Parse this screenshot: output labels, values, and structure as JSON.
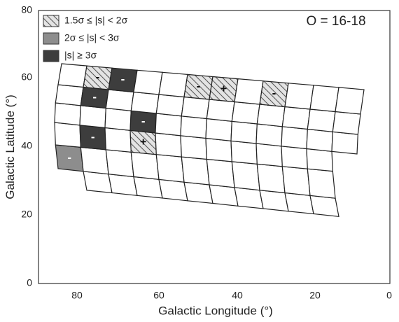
{
  "chart_data": {
    "type": "heatmap",
    "title": "",
    "annotation": "O = 16-18",
    "xlabel": "Galactic Longitude (°)",
    "ylabel": "Galactic Latitude (°)",
    "xlim": [
      90,
      0
    ],
    "ylim": [
      0,
      80
    ],
    "x_ticks": [
      "80",
      "60",
      "40",
      "20",
      "0"
    ],
    "y_ticks": [
      "0",
      "20",
      "40",
      "60",
      "80"
    ],
    "grid": false,
    "legend_position": "top-left",
    "legend": [
      {
        "label": "1.5σ  ≤ |s| < 2σ",
        "style": "hatched-light"
      },
      {
        "label": "2σ ≤ |s| < 3σ",
        "style": "medium"
      },
      {
        "label": "|s| ≥ 3σ",
        "style": "dark"
      }
    ],
    "colors": {
      "hatched-light": "#e3e3e3",
      "medium": "#8d8d8d",
      "dark": "#3d3d3d",
      "none": "#ffffff"
    },
    "cells": [
      {
        "column": 1,
        "row": 2,
        "level": "medium",
        "sign": "-"
      },
      {
        "column": 2,
        "row": 3,
        "level": "dark",
        "sign": "-"
      },
      {
        "column": 2,
        "row": 5,
        "level": "dark",
        "sign": "-"
      },
      {
        "column": 2,
        "row": 6,
        "level": "hatched-light",
        "sign": "-"
      },
      {
        "column": 3,
        "row": 6,
        "level": "dark",
        "sign": "-"
      },
      {
        "column": 4,
        "row": 3,
        "level": "hatched-light",
        "sign": "+"
      },
      {
        "column": 4,
        "row": 4,
        "level": "dark",
        "sign": "-"
      },
      {
        "column": 6,
        "row": 6,
        "level": "hatched-light",
        "sign": "-"
      },
      {
        "column": 7,
        "row": 6,
        "level": "hatched-light",
        "sign": "+"
      },
      {
        "column": 9,
        "row": 6,
        "level": "hatched-light",
        "sign": "-"
      }
    ]
  }
}
